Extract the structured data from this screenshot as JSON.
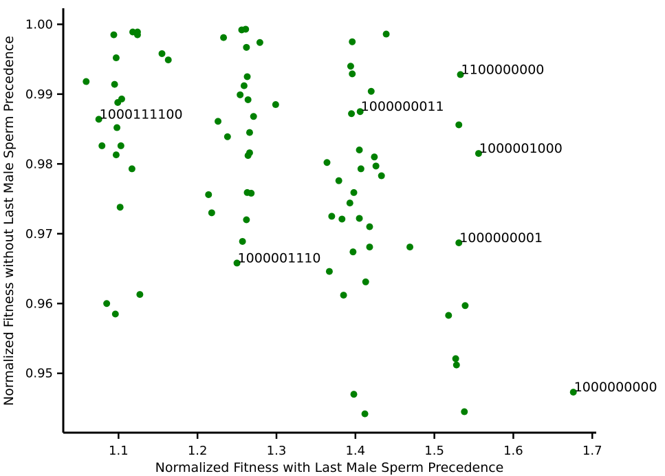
{
  "chart_data": {
    "type": "scatter",
    "title": "",
    "xlabel": "Normalized Fitness with Last Male Sperm Precedence",
    "ylabel": "Normalized Fitness without Last Male Sperm Precedence",
    "xlim": [
      1.03,
      1.705
    ],
    "ylim": [
      0.9415,
      1.0023
    ],
    "xticks": [
      1.1,
      1.2,
      1.3,
      1.4,
      1.5,
      1.6,
      1.7
    ],
    "xtick_labels": [
      "1.1",
      "1.2",
      "1.3",
      "1.4",
      "1.5",
      "1.6",
      "1.7"
    ],
    "yticks": [
      0.95,
      0.96,
      0.97,
      0.98,
      0.99,
      1.0
    ],
    "ytick_labels": [
      "0.95",
      "0.96",
      "0.97",
      "0.98",
      "0.99",
      "1.00"
    ],
    "grid": false,
    "point_color": "#008000",
    "points": [
      {
        "x": 1.094,
        "y": 0.9985
      },
      {
        "x": 1.118,
        "y": 0.9989
      },
      {
        "x": 1.124,
        "y": 0.9989
      },
      {
        "x": 1.124,
        "y": 0.9985
      },
      {
        "x": 1.097,
        "y": 0.9952
      },
      {
        "x": 1.155,
        "y": 0.9958
      },
      {
        "x": 1.163,
        "y": 0.9949
      },
      {
        "x": 1.059,
        "y": 0.9918
      },
      {
        "x": 1.095,
        "y": 0.9914
      },
      {
        "x": 1.104,
        "y": 0.9893
      },
      {
        "x": 1.099,
        "y": 0.9888
      },
      {
        "x": 1.075,
        "y": 0.9864
      },
      {
        "x": 1.098,
        "y": 0.9852
      },
      {
        "x": 1.079,
        "y": 0.9826
      },
      {
        "x": 1.103,
        "y": 0.9826
      },
      {
        "x": 1.097,
        "y": 0.9813
      },
      {
        "x": 1.117,
        "y": 0.9793
      },
      {
        "x": 1.102,
        "y": 0.9738
      },
      {
        "x": 1.085,
        "y": 0.96
      },
      {
        "x": 1.127,
        "y": 0.9613
      },
      {
        "x": 1.096,
        "y": 0.9585
      },
      {
        "x": 1.256,
        "y": 0.9992
      },
      {
        "x": 1.261,
        "y": 0.9993
      },
      {
        "x": 1.233,
        "y": 0.9981
      },
      {
        "x": 1.279,
        "y": 0.9974
      },
      {
        "x": 1.262,
        "y": 0.9967
      },
      {
        "x": 1.263,
        "y": 0.9925
      },
      {
        "x": 1.259,
        "y": 0.9912
      },
      {
        "x": 1.254,
        "y": 0.9899
      },
      {
        "x": 1.264,
        "y": 0.9892
      },
      {
        "x": 1.299,
        "y": 0.9885
      },
      {
        "x": 1.271,
        "y": 0.9868
      },
      {
        "x": 1.226,
        "y": 0.9861
      },
      {
        "x": 1.266,
        "y": 0.9845
      },
      {
        "x": 1.238,
        "y": 0.9839
      },
      {
        "x": 1.266,
        "y": 0.9816
      },
      {
        "x": 1.264,
        "y": 0.9812
      },
      {
        "x": 1.214,
        "y": 0.9756
      },
      {
        "x": 1.263,
        "y": 0.9759
      },
      {
        "x": 1.268,
        "y": 0.9758
      },
      {
        "x": 1.218,
        "y": 0.973
      },
      {
        "x": 1.262,
        "y": 0.972
      },
      {
        "x": 1.257,
        "y": 0.9689
      },
      {
        "x": 1.25,
        "y": 0.9658
      },
      {
        "x": 1.439,
        "y": 0.9986
      },
      {
        "x": 1.396,
        "y": 0.9975
      },
      {
        "x": 1.394,
        "y": 0.994
      },
      {
        "x": 1.396,
        "y": 0.9929
      },
      {
        "x": 1.42,
        "y": 0.9904
      },
      {
        "x": 1.395,
        "y": 0.9872
      },
      {
        "x": 1.406,
        "y": 0.9875
      },
      {
        "x": 1.405,
        "y": 0.982
      },
      {
        "x": 1.424,
        "y": 0.981
      },
      {
        "x": 1.364,
        "y": 0.9802
      },
      {
        "x": 1.426,
        "y": 0.9797
      },
      {
        "x": 1.407,
        "y": 0.9793
      },
      {
        "x": 1.433,
        "y": 0.9783
      },
      {
        "x": 1.379,
        "y": 0.9776
      },
      {
        "x": 1.398,
        "y": 0.9759
      },
      {
        "x": 1.393,
        "y": 0.9744
      },
      {
        "x": 1.37,
        "y": 0.9725
      },
      {
        "x": 1.383,
        "y": 0.9721
      },
      {
        "x": 1.405,
        "y": 0.9722
      },
      {
        "x": 1.418,
        "y": 0.971
      },
      {
        "x": 1.418,
        "y": 0.9681
      },
      {
        "x": 1.397,
        "y": 0.9674
      },
      {
        "x": 1.367,
        "y": 0.9646
      },
      {
        "x": 1.413,
        "y": 0.9631
      },
      {
        "x": 1.385,
        "y": 0.9612
      },
      {
        "x": 1.398,
        "y": 0.947
      },
      {
        "x": 1.412,
        "y": 0.9442
      },
      {
        "x": 1.469,
        "y": 0.9681
      },
      {
        "x": 1.533,
        "y": 0.9928
      },
      {
        "x": 1.531,
        "y": 0.9856
      },
      {
        "x": 1.556,
        "y": 0.9815
      },
      {
        "x": 1.531,
        "y": 0.9687
      },
      {
        "x": 1.539,
        "y": 0.9597
      },
      {
        "x": 1.518,
        "y": 0.9583
      },
      {
        "x": 1.527,
        "y": 0.9521
      },
      {
        "x": 1.528,
        "y": 0.9512
      },
      {
        "x": 1.538,
        "y": 0.9445
      },
      {
        "x": 1.676,
        "y": 0.9473
      }
    ],
    "annotations": [
      {
        "label": "1100000000",
        "x": 1.533,
        "y": 0.9928
      },
      {
        "label": "1000111100",
        "x": 1.075,
        "y": 0.9864
      },
      {
        "label": "1000000011",
        "x": 1.406,
        "y": 0.9875
      },
      {
        "label": "1000001000",
        "x": 1.556,
        "y": 0.9815
      },
      {
        "label": "1000000001",
        "x": 1.531,
        "y": 0.9687
      },
      {
        "label": "1000001110",
        "x": 1.25,
        "y": 0.9658
      },
      {
        "label": "1000000000",
        "x": 1.676,
        "y": 0.9473
      }
    ]
  }
}
